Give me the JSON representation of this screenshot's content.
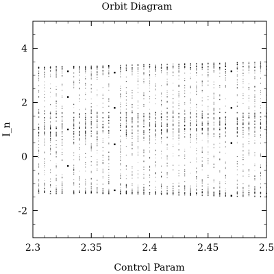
{
  "chart_data": {
    "type": "scatter",
    "title": "Orbit Diagram",
    "xlabel": "Control Param",
    "ylabel": "I_n",
    "xlim": [
      2.3,
      2.5
    ],
    "ylim": [
      -3.0,
      5.0
    ],
    "xticks": [
      2.3,
      2.35,
      2.4,
      2.45,
      2.5
    ],
    "xtick_labels": [
      "2.3",
      "2.35",
      "2.4",
      "2.45",
      "2.5"
    ],
    "yticks": [
      -2,
      0,
      2,
      4
    ],
    "ytick_labels": [
      "-2",
      "0",
      "2",
      "4"
    ],
    "x_minor_step": 0.01,
    "y_minor_step": 0.5,
    "grid": false,
    "legend": "none",
    "colors": {
      "points": "#000000",
      "frame": "#000000"
    },
    "series": [
      {
        "param_start": 2.305,
        "param_end": 2.5,
        "param_step": 0.005,
        "ranges": [
          {
            "x": 2.305,
            "bands": [
              [
                -1.3,
                0.9
              ],
              [
                1.0,
                3.3
              ]
            ]
          },
          {
            "x": 2.4,
            "bands": [
              [
                -1.4,
                1.0
              ],
              [
                1.1,
                3.4
              ]
            ]
          },
          {
            "x": 2.5,
            "bands": [
              [
                -1.5,
                1.1
              ],
              [
                1.2,
                3.5
              ]
            ]
          }
        ],
        "dense_levels": [
          -1.35,
          1.45,
          1.6,
          3.3
        ],
        "periodic_windows": [
          {
            "x": 2.33,
            "values": [
              3.15,
              2.2,
              1.0,
              -0.35
            ]
          },
          {
            "x": 2.37,
            "values": [
              3.1,
              1.8,
              0.45,
              -1.25
            ]
          },
          {
            "x": 2.47,
            "values": [
              3.15,
              1.8,
              0.5,
              -1.45
            ]
          }
        ]
      }
    ]
  }
}
